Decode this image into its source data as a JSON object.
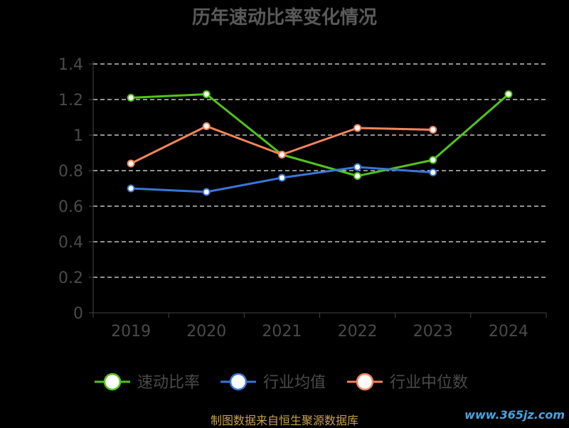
{
  "chart_data": {
    "type": "line",
    "title": "历年速动比率变化情况",
    "categories": [
      "2019",
      "2020",
      "2021",
      "2022",
      "2023",
      "2024"
    ],
    "ylim": [
      0,
      1.4
    ],
    "yticks": [
      "0",
      "0.2",
      "0.4",
      "0.6",
      "0.8",
      "1",
      "1.2",
      "1.4"
    ],
    "grid": true,
    "legend_position": "bottom",
    "series": [
      {
        "name": "速动比率",
        "color": "#52c41a",
        "values": [
          1.21,
          1.23,
          0.89,
          0.77,
          0.86,
          1.23
        ]
      },
      {
        "name": "行业均值",
        "color": "#3a76d8",
        "values": [
          0.7,
          0.68,
          0.76,
          0.82,
          0.79,
          null
        ]
      },
      {
        "name": "行业中位数",
        "color": "#f4855c",
        "values": [
          0.84,
          1.05,
          0.89,
          1.04,
          1.03,
          null
        ]
      }
    ]
  },
  "footer": {
    "source": "制图数据来自恒生聚源数据库",
    "watermark": "www.365jz.com"
  }
}
